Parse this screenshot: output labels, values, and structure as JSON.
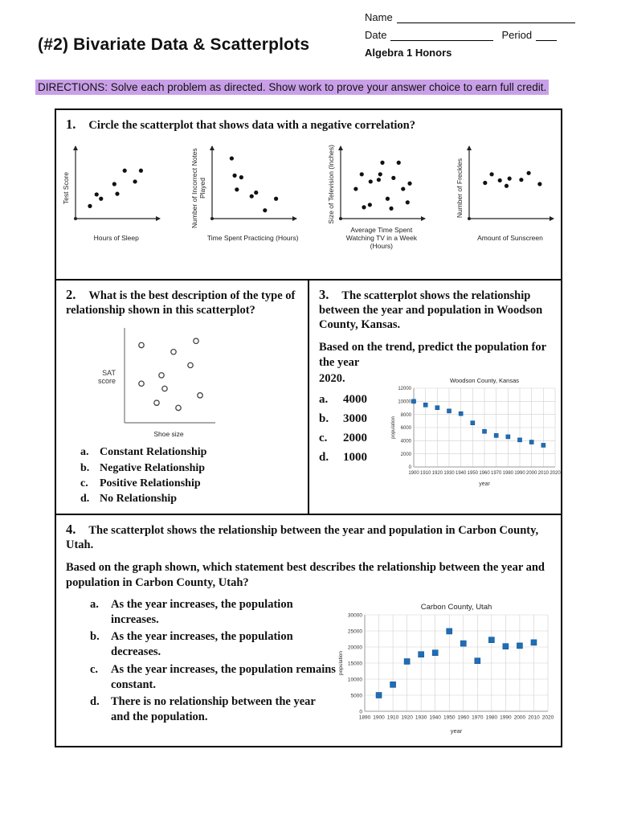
{
  "page": {
    "title": "(#2) Bivariate Data & Scatterplots",
    "header_fields": {
      "name_label": "Name",
      "date_label": "Date",
      "period_label": "Period",
      "course": "Algebra 1 Honors"
    },
    "directions": "DIRECTIONS: Solve each problem as directed. Show work to prove your answer choice to earn full credit.",
    "highlight_color": "#c9a0e8"
  },
  "questions": {
    "q1": {
      "number": "1.",
      "text": "Circle the scatterplot that shows data with a negative correlation?"
    },
    "q2": {
      "number": "2.",
      "text": "What is the best description of the type of relationship shown in this scatterplot?",
      "options": [
        {
          "letter": "a.",
          "text": "Constant Relationship"
        },
        {
          "letter": "b.",
          "text": "Negative Relationship"
        },
        {
          "letter": "c.",
          "text": "Positive Relationship"
        },
        {
          "letter": "d.",
          "text": "No Relationship"
        }
      ]
    },
    "q3": {
      "number": "3.",
      "text": "The scatterplot shows the relationship between the year and population in Woodson County, Kansas.",
      "prompt": "Based on the trend, predict the population for the year",
      "prompt2": "2020.",
      "options": [
        {
          "letter": "a.",
          "text": "4000"
        },
        {
          "letter": "b.",
          "text": "3000"
        },
        {
          "letter": "c.",
          "text": "2000"
        },
        {
          "letter": "d.",
          "text": "1000"
        }
      ]
    },
    "q4": {
      "number": "4.",
      "text": "The scatterplot shows the relationship between the year and population in Carbon County, Utah.",
      "prompt": "Based on the graph shown, which statement best describes the relationship between the year and population in Carbon County, Utah?",
      "options": [
        {
          "letter": "a.",
          "text": "As the year increases, the population increases."
        },
        {
          "letter": "b.",
          "text": "As the year increases, the population decreases."
        },
        {
          "letter": "c.",
          "text": "As the year increases, the population remains constant."
        },
        {
          "letter": "d.",
          "text": "There is no relationship between the year and the population."
        }
      ]
    }
  },
  "chart_data": [
    {
      "id": "q1a",
      "type": "scatter",
      "render": "mini",
      "marker": "dot",
      "xlabel": "Hours of Sleep",
      "ylabel": "Test Score",
      "points": [
        [
          0.13,
          0.14
        ],
        [
          0.22,
          0.33
        ],
        [
          0.28,
          0.26
        ],
        [
          0.46,
          0.5
        ],
        [
          0.5,
          0.34
        ],
        [
          0.6,
          0.72
        ],
        [
          0.74,
          0.54
        ],
        [
          0.82,
          0.72
        ]
      ]
    },
    {
      "id": "q1b",
      "type": "scatter",
      "render": "mini",
      "marker": "dot",
      "xlabel": "Time Spent Practicing (Hours)",
      "ylabel": "Number of Incorrect Notes Played",
      "points": [
        [
          0.2,
          0.92
        ],
        [
          0.24,
          0.64
        ],
        [
          0.33,
          0.61
        ],
        [
          0.27,
          0.41
        ],
        [
          0.47,
          0.3
        ],
        [
          0.53,
          0.36
        ],
        [
          0.65,
          0.07
        ],
        [
          0.8,
          0.26
        ]
      ]
    },
    {
      "id": "q1c",
      "type": "scatter",
      "render": "mini",
      "marker": "dot",
      "xlabel": "Average Time Spent Watching TV in a Week (Hours)",
      "ylabel": "Size of Television (Inches)",
      "points": [
        [
          0.14,
          0.42
        ],
        [
          0.22,
          0.66
        ],
        [
          0.25,
          0.12
        ],
        [
          0.33,
          0.16
        ],
        [
          0.34,
          0.54
        ],
        [
          0.45,
          0.57
        ],
        [
          0.47,
          0.66
        ],
        [
          0.5,
          0.85
        ],
        [
          0.57,
          0.26
        ],
        [
          0.62,
          0.1
        ],
        [
          0.65,
          0.6
        ],
        [
          0.72,
          0.85
        ],
        [
          0.78,
          0.42
        ],
        [
          0.84,
          0.2
        ],
        [
          0.87,
          0.51
        ]
      ]
    },
    {
      "id": "q1d",
      "type": "scatter",
      "render": "mini",
      "marker": "dot",
      "xlabel": "Amount of Sunscreen",
      "ylabel": "Number of Freckles",
      "points": [
        [
          0.15,
          0.52
        ],
        [
          0.24,
          0.66
        ],
        [
          0.35,
          0.56
        ],
        [
          0.44,
          0.47
        ],
        [
          0.48,
          0.59
        ],
        [
          0.64,
          0.57
        ],
        [
          0.74,
          0.68
        ],
        [
          0.89,
          0.5
        ]
      ]
    },
    {
      "id": "q2",
      "type": "scatter",
      "render": "mini",
      "marker": "open-circle",
      "xlabel": "Shoe size",
      "ylabel": "SAT score",
      "axis_color": "#777",
      "points": [
        [
          0.15,
          0.88
        ],
        [
          0.55,
          0.8
        ],
        [
          0.83,
          0.93
        ],
        [
          0.76,
          0.64
        ],
        [
          0.4,
          0.52
        ],
        [
          0.15,
          0.42
        ],
        [
          0.44,
          0.36
        ],
        [
          0.34,
          0.19
        ],
        [
          0.61,
          0.13
        ],
        [
          0.88,
          0.28
        ]
      ]
    },
    {
      "id": "q3",
      "type": "scatter",
      "render": "grid",
      "marker": "square",
      "title": "Woodson County, Kansas",
      "xlabel": "year",
      "ylabel": "population",
      "xlim": [
        1900,
        2020
      ],
      "xstep": 10,
      "ylim": [
        0,
        12000
      ],
      "ystep": 2000,
      "grid": true,
      "marker_color": "#1f6db8",
      "marker_edge": "#15568f",
      "x": [
        1900,
        1910,
        1920,
        1930,
        1940,
        1950,
        1960,
        1970,
        1980,
        1990,
        2000,
        2010
      ],
      "y": [
        10000,
        9450,
        9030,
        8530,
        8120,
        6710,
        5420,
        4790,
        4600,
        4120,
        3790,
        3310
      ]
    },
    {
      "id": "q4",
      "type": "scatter",
      "render": "grid",
      "marker": "square",
      "title": "Carbon County, Utah",
      "xlabel": "year",
      "ylabel": "population",
      "xlim": [
        1890,
        2020
      ],
      "xstep": 10,
      "ylim": [
        0,
        30000
      ],
      "ystep": 5000,
      "grid": true,
      "marker_color": "#1f6db8",
      "marker_edge": "#15568f",
      "x": [
        1900,
        1910,
        1920,
        1930,
        1940,
        1950,
        1960,
        1970,
        1980,
        1990,
        2000,
        2010
      ],
      "y": [
        5000,
        8300,
        15500,
        17700,
        18200,
        24900,
        21100,
        15700,
        22200,
        20200,
        20400,
        21400
      ]
    }
  ]
}
